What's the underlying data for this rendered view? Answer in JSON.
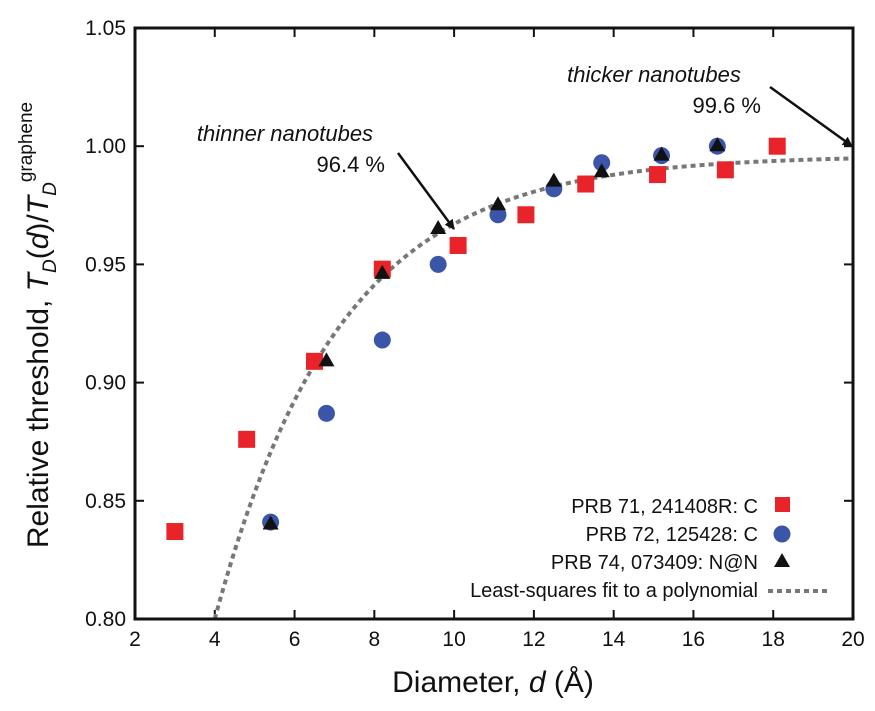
{
  "chart_data": {
    "type": "scatter",
    "xlabel": "Diameter, d (Å)",
    "xlabel_parts": {
      "pre": "Diameter, ",
      "var": "d",
      "post": " (Å)"
    },
    "ylabel": "Relative threshold, T_D(d)/T_D^graphene",
    "ylabel_parts": {
      "pre": "Relative threshold, ",
      "T": "T",
      "sub": "D",
      "open": "(",
      "var": "d",
      "close": ")/",
      "sup": "graphene"
    },
    "xlim": [
      2,
      20
    ],
    "ylim": [
      0.8,
      1.05
    ],
    "xticks": [
      2,
      4,
      6,
      8,
      10,
      12,
      14,
      16,
      18,
      20
    ],
    "yticks": [
      0.8,
      0.85,
      0.9,
      0.95,
      1.0,
      1.05
    ],
    "ytick_labels": [
      "0.80",
      "0.85",
      "0.90",
      "0.95",
      "1.00",
      "1.05"
    ],
    "legend_position": "bottom-right",
    "series": [
      {
        "name": "PRB 71, 241408R: C",
        "marker": "square",
        "color": "#e8232a",
        "points": [
          [
            3.0,
            0.837
          ],
          [
            4.8,
            0.876
          ],
          [
            6.5,
            0.909
          ],
          [
            8.2,
            0.948
          ],
          [
            10.1,
            0.958
          ],
          [
            11.8,
            0.971
          ],
          [
            13.3,
            0.984
          ],
          [
            15.1,
            0.988
          ],
          [
            16.8,
            0.99
          ],
          [
            18.1,
            1.0
          ]
        ]
      },
      {
        "name": "PRB 72, 125428: C",
        "marker": "circle",
        "color": "#3b55a8",
        "points": [
          [
            5.4,
            0.841
          ],
          [
            6.8,
            0.887
          ],
          [
            8.2,
            0.918
          ],
          [
            9.6,
            0.95
          ],
          [
            11.1,
            0.971
          ],
          [
            12.5,
            0.982
          ],
          [
            13.7,
            0.993
          ],
          [
            15.2,
            0.996
          ],
          [
            16.6,
            1.0
          ]
        ]
      },
      {
        "name": "PRB 74, 073409: N@N",
        "marker": "triangle",
        "color": "#111111",
        "points": [
          [
            5.4,
            0.84
          ],
          [
            6.8,
            0.909
          ],
          [
            8.2,
            0.946
          ],
          [
            9.6,
            0.965
          ],
          [
            11.1,
            0.975
          ],
          [
            12.5,
            0.985
          ],
          [
            13.7,
            0.989
          ],
          [
            15.2,
            0.996
          ],
          [
            16.6,
            1.0
          ]
        ]
      },
      {
        "name": "Least-squares fit to a polynomial",
        "marker": "dashed-line",
        "color": "#777777",
        "fit": {
          "y_at_20": 0.996,
          "amplitude": 0.196,
          "decay_per_angstrom": 0.319,
          "x_start": 4.0
        }
      }
    ],
    "annotations": [
      {
        "line1": "thinner nanotubes",
        "line2": "96.4 %",
        "target": [
          10.0,
          0.964
        ]
      },
      {
        "line1": "thicker nanotubes",
        "line2": "99.6 %",
        "target": [
          20.0,
          0.996
        ]
      }
    ]
  }
}
